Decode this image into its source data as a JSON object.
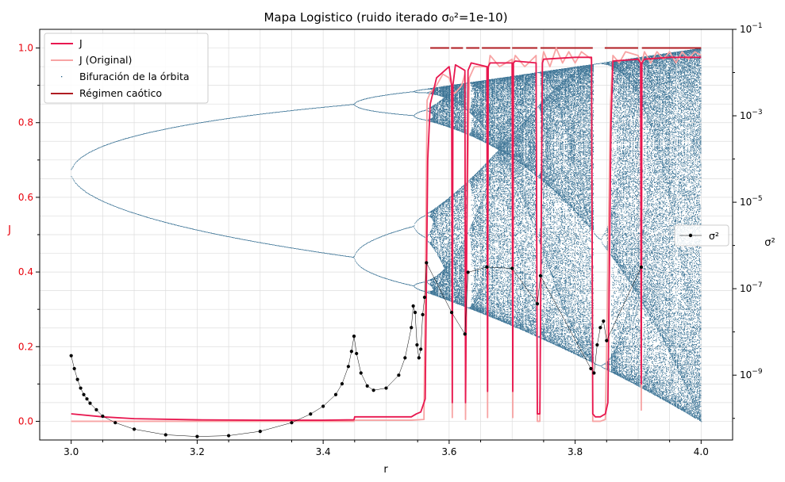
{
  "chart_data": {
    "type": "line",
    "title": "Mapa Logistico (ruido iterado σ₀²=1e-10)",
    "xlabel": "r",
    "ylabel_left": "J",
    "ylabel_right": "σ²",
    "xlim": [
      2.95,
      4.05
    ],
    "ylim_left": [
      -0.05,
      1.05
    ],
    "ylim_right_log10": [
      -10.5,
      -1
    ],
    "grid": true,
    "x_ticks": [
      "3.0",
      "3.2",
      "3.4",
      "3.6",
      "3.8",
      "4.0"
    ],
    "y_ticks_left": [
      "0.0",
      "0.2",
      "0.4",
      "0.6",
      "0.8",
      "1.0"
    ],
    "y_ticks_right": [
      {
        "base": "10",
        "exp": "−1",
        "value": -1
      },
      {
        "base": "10",
        "exp": "−3",
        "value": -3
      },
      {
        "base": "10",
        "exp": "−5",
        "value": -5
      },
      {
        "base": "10",
        "exp": "−7",
        "value": -7
      },
      {
        "base": "10",
        "exp": "−9",
        "value": -9
      }
    ],
    "legend_left": {
      "placement": "upper-left",
      "entries": [
        "J",
        "J (Original)",
        "Bifuración de la órbita",
        "Régimen caótico"
      ]
    },
    "legend_right": {
      "placement": "center-right",
      "entries": [
        "σ²"
      ]
    },
    "colors": {
      "J": "#e8174f",
      "J_original": "#f7a4a4",
      "bifurcation": "#1f5f86",
      "chaotic": "#b01c22",
      "sigma2": "#000000"
    },
    "series": [
      {
        "name": "J",
        "x": [
          3.0,
          3.05,
          3.1,
          3.2,
          3.3,
          3.4,
          3.449,
          3.45,
          3.5,
          3.54,
          3.548,
          3.555,
          3.562,
          3.566,
          3.57,
          3.58,
          3.6,
          3.604,
          3.605,
          3.606,
          3.61,
          3.625,
          3.626,
          3.628,
          3.63,
          3.635,
          3.66,
          3.661,
          3.662,
          3.665,
          3.7,
          3.701,
          3.702,
          3.705,
          3.738,
          3.74,
          3.744,
          3.748,
          3.75,
          3.8,
          3.826,
          3.828,
          3.832,
          3.84,
          3.848,
          3.852,
          3.855,
          3.857,
          3.86,
          3.9,
          3.904,
          3.905,
          3.906,
          3.91,
          3.95,
          4.0
        ],
        "values": [
          0.02,
          0.012,
          0.007,
          0.004,
          0.003,
          0.003,
          0.004,
          0.012,
          0.012,
          0.012,
          0.02,
          0.025,
          0.06,
          0.7,
          0.85,
          0.92,
          0.95,
          0.9,
          0.05,
          0.9,
          0.955,
          0.94,
          0.05,
          0.5,
          0.94,
          0.96,
          0.95,
          0.08,
          0.95,
          0.96,
          0.96,
          0.08,
          0.96,
          0.965,
          0.96,
          0.02,
          0.02,
          0.96,
          0.97,
          0.975,
          0.975,
          0.02,
          0.012,
          0.012,
          0.02,
          0.05,
          0.5,
          0.8,
          0.965,
          0.97,
          0.96,
          0.1,
          0.96,
          0.97,
          0.975,
          0.975
        ]
      },
      {
        "name": "J (Original)",
        "x": [
          3.0,
          3.05,
          3.4,
          3.449,
          3.45,
          3.54,
          3.56,
          3.563,
          3.565,
          3.57,
          3.58,
          3.59,
          3.6,
          3.604,
          3.605,
          3.606,
          3.61,
          3.62,
          3.625,
          3.626,
          3.628,
          3.632,
          3.64,
          3.66,
          3.661,
          3.662,
          3.665,
          3.68,
          3.7,
          3.701,
          3.702,
          3.705,
          3.72,
          3.738,
          3.74,
          3.744,
          3.748,
          3.75,
          3.76,
          3.77,
          3.78,
          3.79,
          3.8,
          3.81,
          3.826,
          3.828,
          3.832,
          3.84,
          3.848,
          3.852,
          3.856,
          3.86,
          3.87,
          3.88,
          3.9,
          3.904,
          3.905,
          3.906,
          3.91,
          3.92,
          3.93,
          3.94,
          3.95,
          3.96,
          3.97,
          3.98,
          3.99,
          4.0
        ],
        "values": [
          0.0,
          0.0,
          0.0,
          0.0,
          0.003,
          0.003,
          0.005,
          0.5,
          0.86,
          0.88,
          0.9,
          0.93,
          0.92,
          0.9,
          0.01,
          0.88,
          0.88,
          0.9,
          0.93,
          0.005,
          0.5,
          0.92,
          0.95,
          0.95,
          0.01,
          0.94,
          0.98,
          0.95,
          0.97,
          0.01,
          0.96,
          0.98,
          0.95,
          0.98,
          0.0,
          0.0,
          0.97,
          0.99,
          0.95,
          1.0,
          0.96,
          0.99,
          0.96,
          0.99,
          0.97,
          0.0,
          0.0,
          0.0,
          0.005,
          0.4,
          0.85,
          0.98,
          0.96,
          0.99,
          0.98,
          0.96,
          0.03,
          0.96,
          0.99,
          0.96,
          0.99,
          0.97,
          0.99,
          0.96,
          0.99,
          0.97,
          0.99,
          0.98
        ]
      },
      {
        "name": "σ²",
        "x": [
          3.0,
          3.005,
          3.01,
          3.015,
          3.02,
          3.025,
          3.03,
          3.04,
          3.05,
          3.07,
          3.1,
          3.15,
          3.2,
          3.25,
          3.3,
          3.35,
          3.38,
          3.4,
          3.42,
          3.43,
          3.44,
          3.445,
          3.449,
          3.453,
          3.46,
          3.47,
          3.48,
          3.5,
          3.52,
          3.53,
          3.54,
          3.543,
          3.546,
          3.549,
          3.552,
          3.555,
          3.558,
          3.561,
          3.564,
          3.604,
          3.625,
          3.63,
          3.66,
          3.7,
          3.74,
          3.745,
          3.825,
          3.83,
          3.835,
          3.84,
          3.845,
          3.85,
          3.905
        ],
        "values": [
          -8.55,
          -8.85,
          -9.1,
          -9.3,
          -9.45,
          -9.55,
          -9.65,
          -9.8,
          -9.95,
          -10.1,
          -10.25,
          -10.38,
          -10.42,
          -10.4,
          -10.3,
          -10.1,
          -9.9,
          -9.72,
          -9.45,
          -9.2,
          -8.8,
          -8.45,
          -8.1,
          -8.5,
          -8.95,
          -9.25,
          -9.35,
          -9.3,
          -9.0,
          -8.6,
          -7.9,
          -7.4,
          -7.55,
          -8.3,
          -8.6,
          -8.4,
          -7.6,
          -7.2,
          -6.4,
          -7.55,
          -8.05,
          -6.62,
          -6.5,
          -6.53,
          -7.35,
          -6.7,
          -8.85,
          -8.95,
          -8.3,
          -7.9,
          -7.75,
          -8.2,
          -6.5
        ]
      }
    ],
    "bifurcation": {
      "period1_formula": "x = 1 - 1/r",
      "period_doubling_r": [
        3.0,
        3.449,
        3.544,
        3.564
      ],
      "chaos_band_lower_at_r4": 0.0,
      "chaos_band_upper_at_r4": 1.0
    },
    "chaotic_regime": {
      "y": 1.0,
      "intervals": [
        [
          3.57,
          3.6
        ],
        [
          3.603,
          3.622
        ],
        [
          3.627,
          3.648
        ],
        [
          3.652,
          3.697
        ],
        [
          3.7,
          3.74
        ],
        [
          3.745,
          3.828
        ],
        [
          3.847,
          3.9
        ],
        [
          3.906,
          4.0
        ]
      ]
    }
  }
}
